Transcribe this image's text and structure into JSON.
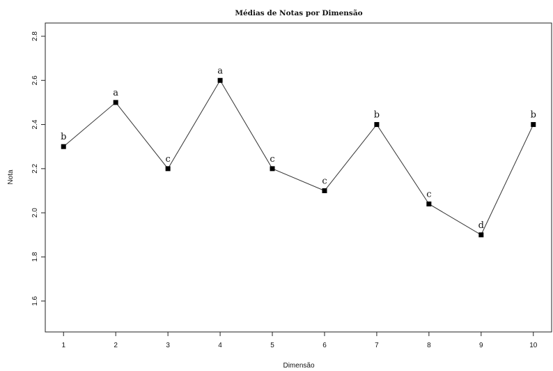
{
  "chart_data": {
    "type": "line",
    "title": "Médias de Notas por Dimensão",
    "xlabel": "Dimensão",
    "ylabel": "Nota",
    "x": [
      1,
      2,
      3,
      4,
      5,
      6,
      7,
      8,
      9,
      10
    ],
    "values": [
      2.3,
      2.5,
      2.2,
      2.6,
      2.2,
      2.1,
      2.4,
      2.04,
      1.9,
      2.4
    ],
    "point_labels": [
      "b",
      "a",
      "c",
      "a",
      "c",
      "c",
      "b",
      "c",
      "d",
      "b"
    ],
    "x_ticks": [
      "1",
      "2",
      "3",
      "4",
      "5",
      "6",
      "7",
      "8",
      "9",
      "10"
    ],
    "y_ticks": [
      "1.6",
      "1.8",
      "2.0",
      "2.2",
      "2.4",
      "2.6",
      "2.8"
    ],
    "y_tick_values": [
      1.6,
      1.8,
      2.0,
      2.2,
      2.4,
      2.6,
      2.8
    ],
    "xlim": [
      0.65,
      10.35
    ],
    "ylim": [
      1.46,
      2.86
    ],
    "grid": false,
    "legend": "none",
    "line_color": "#333333",
    "marker_color": "#000000"
  }
}
